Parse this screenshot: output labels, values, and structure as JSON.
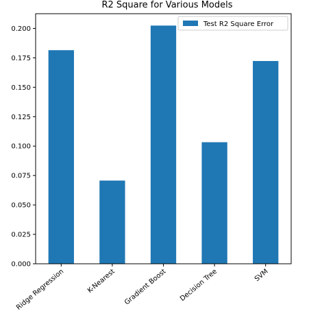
{
  "chart_data": {
    "type": "bar",
    "title": "R2 Square for Various Models",
    "xlabel": "",
    "ylabel": "",
    "categories": [
      "Ridge Regression",
      "K-Nearest",
      "Gradient Boost",
      "Decision Tree",
      "SVM"
    ],
    "series": [
      {
        "name": "Test R2 Square Error",
        "values": [
          0.1815,
          0.0707,
          0.2024,
          0.1033,
          0.1723
        ]
      }
    ],
    "ylim": [
      0,
      0.2125
    ],
    "yticks": [
      0.0,
      0.025,
      0.05,
      0.075,
      0.1,
      0.125,
      0.15,
      0.175,
      0.2
    ],
    "ytick_labels": [
      "0.000",
      "0.025",
      "0.050",
      "0.075",
      "0.100",
      "0.125",
      "0.150",
      "0.175",
      "0.200"
    ],
    "grid": false,
    "legend_position": "top-right",
    "bar_color": "#1f77b4"
  }
}
